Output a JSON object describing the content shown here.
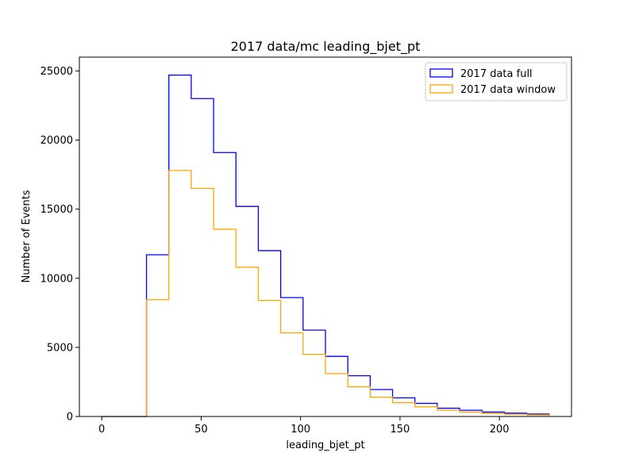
{
  "chart_data": {
    "type": "histogram",
    "title": "2017 data/mc leading_bjet_pt",
    "xlabel": "leading_bjet_pt",
    "ylabel": "Number of Events",
    "xlim": [
      -11.25,
      236.25
    ],
    "ylim": [
      0,
      26000
    ],
    "xticks": [
      0,
      50,
      100,
      150,
      200
    ],
    "yticks": [
      0,
      5000,
      10000,
      15000,
      20000,
      25000
    ],
    "grid": false,
    "legend_position": "top-right",
    "bin_edges": [
      0,
      11.25,
      22.5,
      33.75,
      45,
      56.25,
      67.5,
      78.75,
      90,
      101.25,
      112.5,
      123.75,
      135,
      146.25,
      157.5,
      168.75,
      180,
      191.25,
      202.5,
      213.75,
      225
    ],
    "series": [
      {
        "name": "2017 data full",
        "color": "#0000ff",
        "values": [
          0,
          0,
          11700,
          24700,
          23000,
          19100,
          15200,
          12000,
          8600,
          6250,
          4350,
          2950,
          1950,
          1350,
          950,
          600,
          450,
          320,
          240,
          180
        ]
      },
      {
        "name": "2017 data window",
        "color": "#ffa500",
        "values": [
          0,
          0,
          8450,
          17800,
          16500,
          13550,
          10800,
          8400,
          6050,
          4500,
          3100,
          2150,
          1400,
          1000,
          700,
          450,
          320,
          220,
          170,
          110
        ]
      }
    ]
  }
}
